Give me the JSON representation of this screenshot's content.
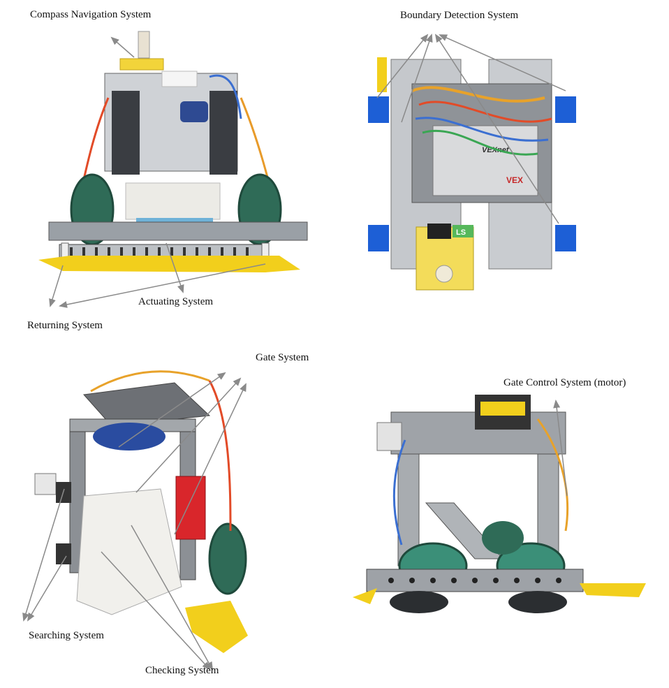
{
  "labels": {
    "compass": "Compass Navigation System",
    "boundary": "Boundary Detection System",
    "actuating": "Actuating System",
    "returning": "Returning System",
    "gate": "Gate System",
    "gate_control": "Gate Control System (motor)",
    "searching": "Searching System",
    "checking": "Checking System"
  },
  "robot_lettering": {
    "brand": "VEXnet",
    "logo": "VEX",
    "pcb_mark": "LS"
  },
  "colors": {
    "arrow": "#8a8a8a",
    "metal": "#b9bcc1",
    "dark": "#2c2f33",
    "tape": "#f2cf1c",
    "wheel": "#2f6b57",
    "wheel_tread": "#3b8f78",
    "blue_block": "#1d5fd6",
    "red_part": "#d9262b",
    "white_part": "#f1f0ec"
  }
}
